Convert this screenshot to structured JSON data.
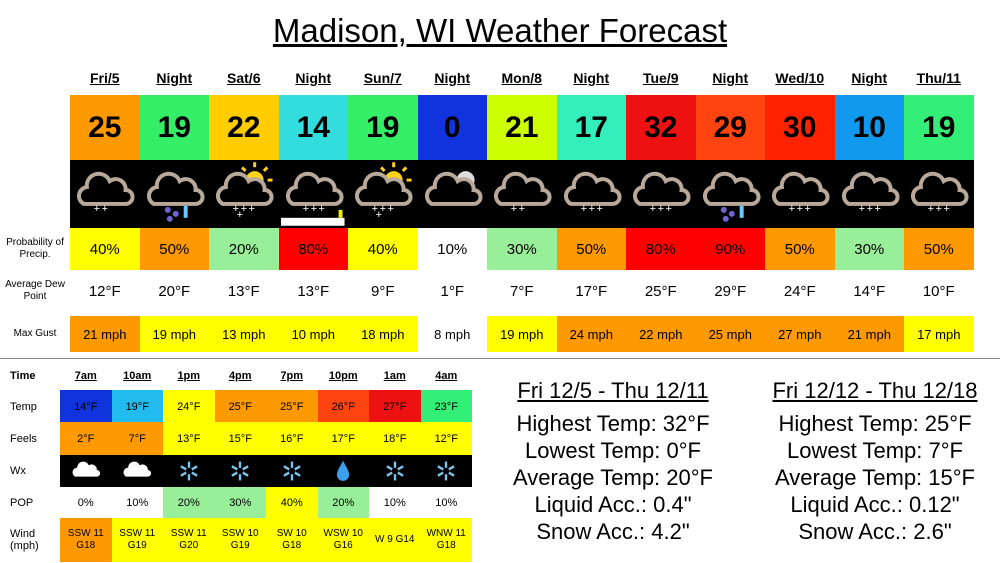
{
  "title": "Madison, WI Weather Forecast",
  "daily": {
    "columns": [
      "Fri/5",
      "Night",
      "Sat/6",
      "Night",
      "Sun/7",
      "Night",
      "Mon/8",
      "Night",
      "Tue/9",
      "Night",
      "Wed/10",
      "Night",
      "Thu/11"
    ],
    "temps": [
      25,
      19,
      22,
      14,
      19,
      0,
      21,
      17,
      32,
      29,
      30,
      10,
      19
    ],
    "temp_colors": [
      "#ff9900",
      "#33ee66",
      "#ffcc00",
      "#33dddd",
      "#33ee66",
      "#1133dd",
      "#ccff00",
      "#33eebb",
      "#ee1111",
      "#ff4411",
      "#ff2200",
      "#1199ee",
      "#33ee77"
    ],
    "rows": [
      {
        "label": "Probability of Precip.",
        "values": [
          "40%",
          "50%",
          "20%",
          "80%",
          "40%",
          "10%",
          "30%",
          "50%",
          "80%",
          "90%",
          "50%",
          "30%",
          "50%"
        ],
        "colors": [
          "#ffff00",
          "#ff9900",
          "#99ee99",
          "#ff0000",
          "#ffff00",
          "#ffffff",
          "#99ee99",
          "#ff9900",
          "#ff0000",
          "#ff0000",
          "#ff9900",
          "#99ee99",
          "#ff9900"
        ]
      },
      {
        "label": "Average Dew Point",
        "values": [
          "12°F",
          "20°F",
          "13°F",
          "13°F",
          "9°F",
          "1°F",
          "7°F",
          "17°F",
          "25°F",
          "29°F",
          "24°F",
          "14°F",
          "10°F"
        ],
        "colors": [
          "#ffffff",
          "#ffffff",
          "#ffffff",
          "#ffffff",
          "#ffffff",
          "#ffffff",
          "#ffffff",
          "#ffffff",
          "#ffffff",
          "#ffffff",
          "#ffffff",
          "#ffffff",
          "#ffffff"
        ]
      },
      {
        "label": "Max Gust",
        "values": [
          "21 mph",
          "19 mph",
          "13 mph",
          "10 mph",
          "18 mph",
          "8 mph",
          "19 mph",
          "24 mph",
          "22 mph",
          "25 mph",
          "27 mph",
          "21 mph",
          "17 mph"
        ],
        "colors": [
          "#ff9900",
          "#ffff00",
          "#ffff00",
          "#ffff00",
          "#ffff00",
          "#ffffff",
          "#ffff00",
          "#ff9900",
          "#ff9900",
          "#ff9900",
          "#ff9900",
          "#ff9900",
          "#ffff00"
        ]
      }
    ]
  },
  "hourly": {
    "header": "Time",
    "times": [
      "7am",
      "10am",
      "1pm",
      "4pm",
      "7pm",
      "10pm",
      "1am",
      "4am"
    ],
    "rows": [
      {
        "label": "Temp",
        "values": [
          "14°F",
          "19°F",
          "24°F",
          "25°F",
          "25°F",
          "26°F",
          "27°F",
          "23°F"
        ],
        "colors": [
          "#1133dd",
          "#22bbee",
          "#ffff00",
          "#ff9900",
          "#ff9900",
          "#ff4411",
          "#ee1111",
          "#33ee77"
        ]
      },
      {
        "label": "Feels",
        "values": [
          "2°F",
          "7°F",
          "13°F",
          "15°F",
          "16°F",
          "17°F",
          "18°F",
          "12°F"
        ],
        "colors": [
          "#ff9900",
          "#ff9900",
          "#ffff00",
          "#ffff00",
          "#ffff00",
          "#ffff00",
          "#ffff00",
          "#ffff00"
        ]
      },
      {
        "label": "Wx"
      },
      {
        "label": "POP",
        "values": [
          "0%",
          "10%",
          "20%",
          "30%",
          "40%",
          "20%",
          "10%",
          "10%"
        ],
        "colors": [
          "#ffffff",
          "#ffffff",
          "#99ee99",
          "#99ee99",
          "#ffff00",
          "#99ee99",
          "#ffffff",
          "#ffffff"
        ]
      },
      {
        "label": "Wind (mph)",
        "values": [
          "SSW 11 G18",
          "SSW 11 G19",
          "SSW 11 G20",
          "SSW 10 G19",
          "SW 10 G18",
          "WSW 10 G16",
          "W 9 G14",
          "WNW 11 G18"
        ],
        "colors": [
          "#ff9900",
          "#ffff00",
          "#ffff00",
          "#ffff00",
          "#ffff00",
          "#ffff00",
          "#ffff00",
          "#ffff00"
        ]
      }
    ]
  },
  "summaries": [
    {
      "title": "Fri 12/5 - Thu 12/11",
      "lines": [
        "Highest Temp: 32°F",
        "Lowest Temp: 0°F",
        "Average Temp: 20°F",
        "Liquid Acc.: 0.4\"",
        "Snow Acc.: 4.2\""
      ]
    },
    {
      "title": "Fri 12/12 - Thu 12/18",
      "lines": [
        "Highest Temp: 25°F",
        "Lowest Temp: 7°F",
        "Average Temp: 15°F",
        "Liquid Acc.: 0.12\"",
        "Snow Acc.: 2.6\""
      ]
    }
  ]
}
